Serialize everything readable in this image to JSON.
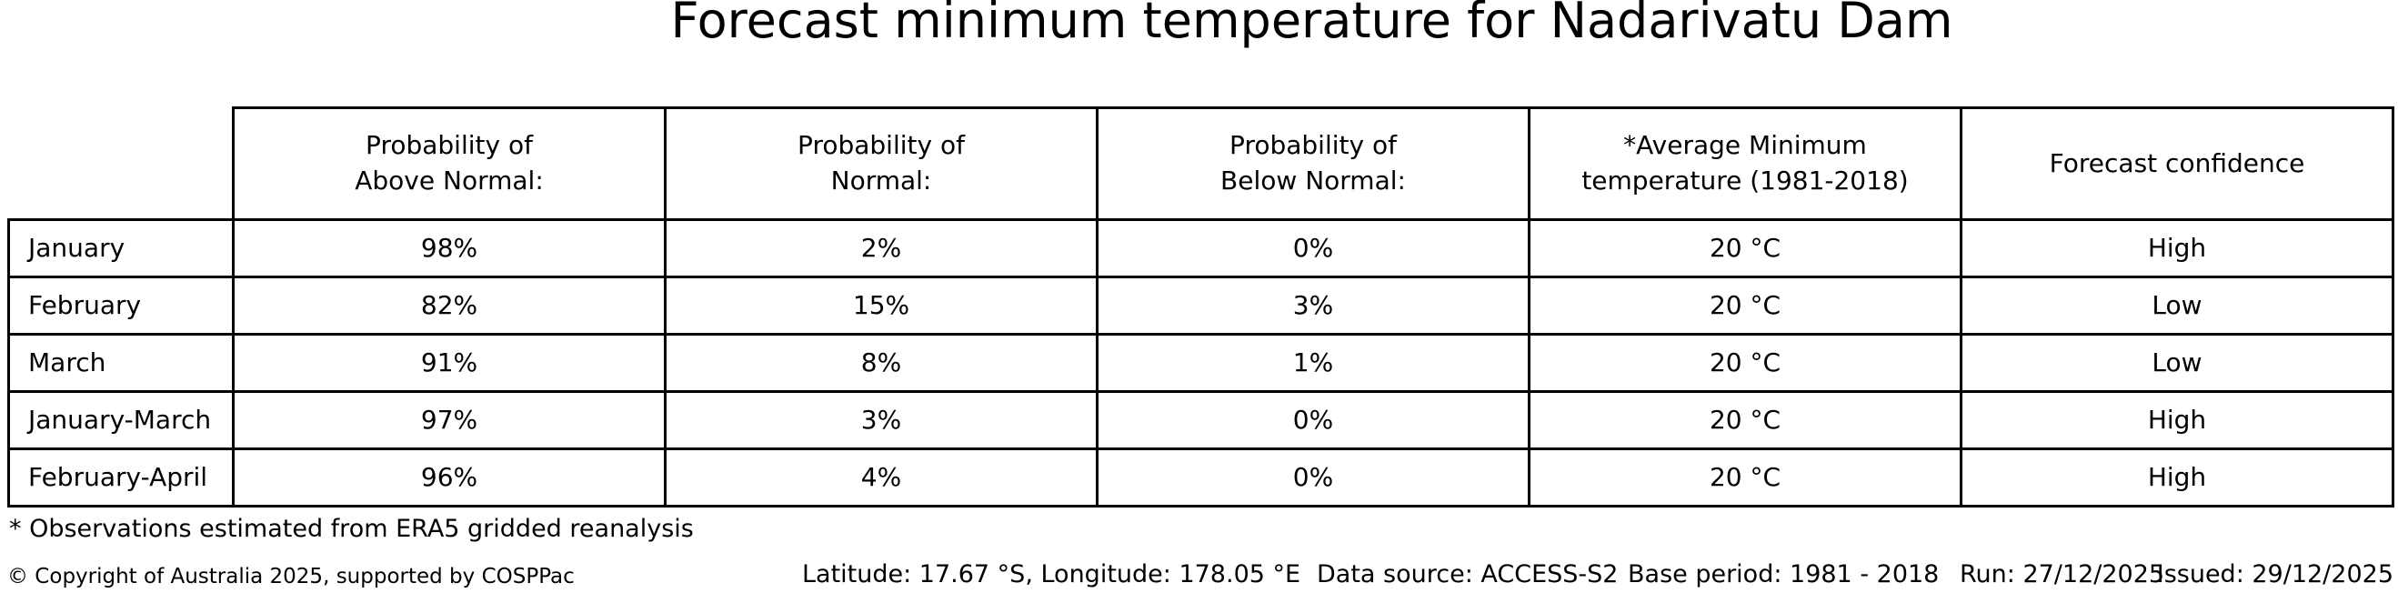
{
  "chart_data": {
    "type": "table",
    "title": "Forecast minimum temperature for Nadarivatu Dam",
    "columns": [
      "",
      "Probability of\nAbove Normal:",
      "Probability of\nNormal:",
      "Probability of\nBelow Normal:",
      "*Average Minimum\ntemperature (1981-2018)",
      "Forecast confidence"
    ],
    "rows": [
      [
        "January",
        "98%",
        "2%",
        "0%",
        "20 °C",
        "High"
      ],
      [
        "February",
        "82%",
        "15%",
        "3%",
        "20 °C",
        "Low"
      ],
      [
        "March",
        "91%",
        "8%",
        "1%",
        "20 °C",
        "Low"
      ],
      [
        "January-March",
        "97%",
        "3%",
        "0%",
        "20 °C",
        "High"
      ],
      [
        "February-April",
        "96%",
        "4%",
        "0%",
        "20 °C",
        "High"
      ]
    ],
    "layout": {
      "grid": "on",
      "border_color": "#000000",
      "background": "#ffffff"
    }
  },
  "footnote": "* Observations estimated from ERA5 gridded reanalysis",
  "footer": {
    "copyright": "© Copyright of Australia 2025, supported by COSPPac",
    "location": "Latitude: 17.67 °S, Longitude: 178.05 °E",
    "data_source": "Data source: ACCESS-S2",
    "base_period": "Base period: 1981 - 2018",
    "run": "Run: 27/12/2025",
    "issued": "Issued: 29/12/2025"
  },
  "colors": {
    "text": "#000000",
    "background": "#ffffff",
    "border": "#000000"
  }
}
